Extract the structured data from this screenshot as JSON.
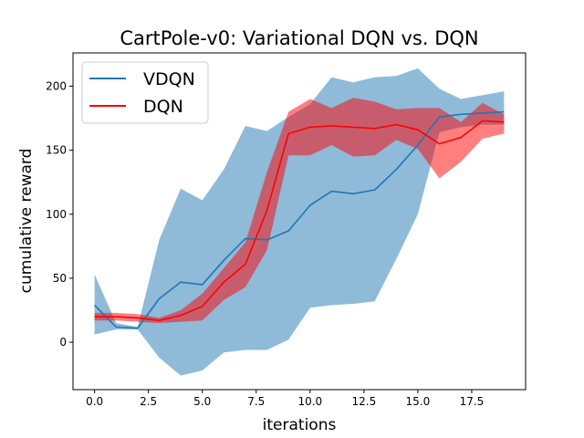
{
  "chart_data": {
    "type": "line",
    "title": "CartPole-v0: Variational DQN vs. DQN",
    "xlabel": "iterations",
    "ylabel": "cumulative reward",
    "xlim": [
      -1,
      20
    ],
    "ylim": [
      -37,
      226
    ],
    "xticks": [
      0.0,
      2.5,
      5.0,
      7.5,
      10.0,
      12.5,
      15.0,
      17.5
    ],
    "xtick_labels": [
      "0.0",
      "2.5",
      "5.0",
      "7.5",
      "10.0",
      "12.5",
      "15.0",
      "17.5"
    ],
    "yticks": [
      0,
      50,
      100,
      150,
      200
    ],
    "ytick_labels": [
      "0",
      "50",
      "100",
      "150",
      "200"
    ],
    "legend_position": "top-left",
    "x": [
      0,
      1,
      2,
      3,
      4,
      5,
      6,
      7,
      8,
      9,
      10,
      11,
      12,
      13,
      14,
      15,
      16,
      17,
      18,
      19
    ],
    "series": [
      {
        "name": "VDQN",
        "color": "#1f77b4",
        "band_color": "#1f77b4",
        "band_opacity": 0.5,
        "mean": [
          29,
          12,
          11,
          34,
          47,
          45,
          64,
          81,
          80,
          87,
          107,
          118,
          116,
          119,
          135,
          154,
          176,
          178,
          179,
          180
        ],
        "upper": [
          53,
          15,
          12,
          80,
          120,
          111,
          135,
          169,
          165,
          176,
          186,
          207,
          203,
          207,
          208,
          214,
          198,
          190,
          193,
          196
        ],
        "lower": [
          6,
          10,
          10,
          -12,
          -26,
          -22,
          -8,
          -6,
          -6,
          2,
          27,
          29,
          30,
          32,
          65,
          100,
          164,
          168,
          170,
          170
        ]
      },
      {
        "name": "DQN",
        "color": "#ff0000",
        "band_color": "#ff0000",
        "band_opacity": 0.5,
        "mean": [
          20,
          20,
          19,
          17,
          21,
          28,
          47,
          61,
          103,
          163,
          168,
          169,
          168,
          167,
          170,
          166,
          155,
          160,
          173,
          172
        ],
        "upper": [
          23,
          23,
          22,
          19,
          25,
          38,
          58,
          78,
          133,
          180,
          190,
          183,
          191,
          188,
          182,
          183,
          183,
          172,
          187,
          178
        ],
        "lower": [
          17,
          17,
          16,
          15,
          16,
          17,
          33,
          43,
          72,
          146,
          146,
          154,
          145,
          146,
          158,
          151,
          128,
          141,
          159,
          163
        ]
      }
    ]
  }
}
